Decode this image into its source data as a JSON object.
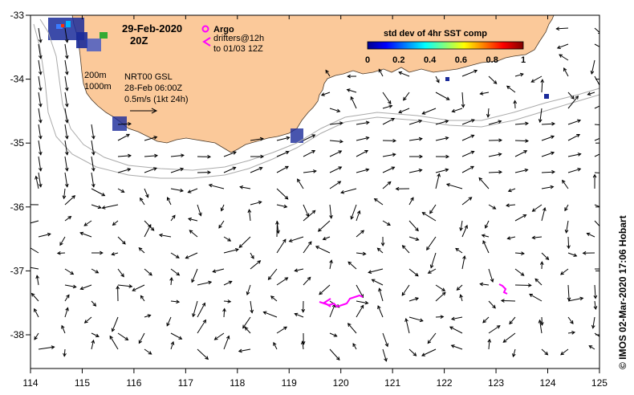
{
  "map": {
    "date": "29-Feb-2020",
    "time": "20Z",
    "argo_label": "Argo",
    "drifters_label_1": "drifters@12h",
    "drifters_label_2": "to 01/03 12Z",
    "isobath_1": "200m",
    "isobath_2": "1000m",
    "product_1": "NRT00 GSL",
    "product_2": "28-Feb 06:00Z",
    "scale_label": "0.5m/s (1kt 24h)",
    "colorbar_title": "std dev of 4hr SST comp",
    "colorbar_ticks": [
      "0",
      "0.2",
      "0.4",
      "0.6",
      "0.8",
      "1"
    ],
    "credit": "© IMOS 02-Mar-2020 17:06 Hobart",
    "lon_ticks": [
      "114",
      "115",
      "116",
      "117",
      "118",
      "119",
      "120",
      "121",
      "122",
      "123",
      "124",
      "125"
    ],
    "lat_ticks": [
      "-33",
      "-34",
      "-35",
      "-36",
      "-37",
      "-38"
    ]
  },
  "colors": {
    "land": "#fbc99a",
    "coast": "#4a3a2a",
    "isobath": "#aaaaaa",
    "vector": "#000000",
    "drifter": "#ff00ff",
    "background": "#ffffff"
  }
}
